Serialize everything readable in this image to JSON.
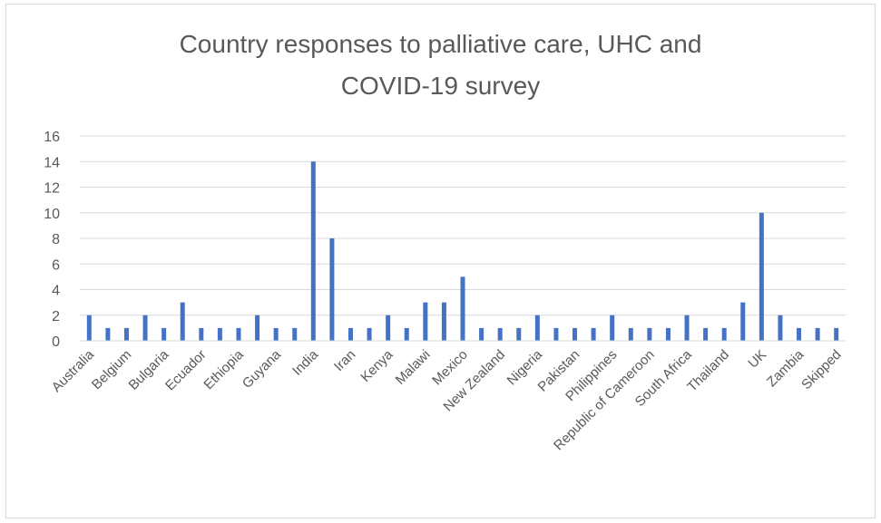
{
  "chart_data": {
    "type": "bar",
    "title_line1": "Country responses to palliative care, UHC and",
    "title_line2": "COVID-19 survey",
    "xlabel": "",
    "ylabel": "",
    "ylim": [
      0,
      16
    ],
    "yticks": [
      0,
      2,
      4,
      6,
      8,
      10,
      12,
      14,
      16
    ],
    "grid": true,
    "legend": "none",
    "bar_color": "#4472c4",
    "gridline_color": "#d9d9d9",
    "values": [
      2,
      1,
      1,
      2,
      1,
      3,
      1,
      1,
      1,
      2,
      1,
      1,
      14,
      8,
      1,
      1,
      2,
      1,
      3,
      3,
      5,
      1,
      1,
      1,
      2,
      1,
      1,
      1,
      2,
      1,
      1,
      1,
      2,
      1,
      1,
      3,
      10,
      2,
      1,
      1,
      1
    ],
    "x_tick_labels": [
      {
        "label": "Australia",
        "index": 0
      },
      {
        "label": "Belgium",
        "index": 2
      },
      {
        "label": "Bulgaria",
        "index": 4
      },
      {
        "label": "Ecuador",
        "index": 6
      },
      {
        "label": "Ethiopia",
        "index": 8
      },
      {
        "label": "Guyana",
        "index": 10
      },
      {
        "label": "India",
        "index": 12
      },
      {
        "label": "Iran",
        "index": 14
      },
      {
        "label": "Kenya",
        "index": 16
      },
      {
        "label": "Malawi",
        "index": 18
      },
      {
        "label": "Mexico",
        "index": 20
      },
      {
        "label": "New Zealand",
        "index": 22
      },
      {
        "label": "Nigeria",
        "index": 24
      },
      {
        "label": "Pakistan",
        "index": 26
      },
      {
        "label": "Philippines",
        "index": 28
      },
      {
        "label": "Republic of Cameroon",
        "index": 30
      },
      {
        "label": "South Africa",
        "index": 32
      },
      {
        "label": "Thailand",
        "index": 34
      },
      {
        "label": "UK",
        "index": 36
      },
      {
        "label": "Zambia",
        "index": 38
      },
      {
        "label": "Skipped",
        "index": 40
      }
    ]
  }
}
